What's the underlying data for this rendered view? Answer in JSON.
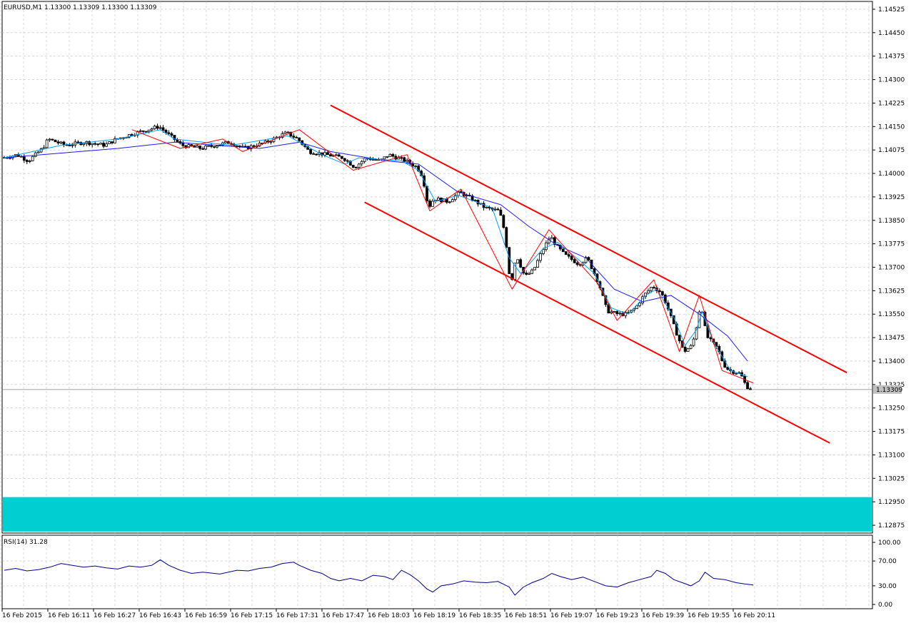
{
  "window": {
    "symbol_header": "EURUSD,M1  1.13300 1.13309 1.13300 1.13309"
  },
  "colors": {
    "background": "#ffffff",
    "grid": "#c0c0c0",
    "candle_bull": "#1a1a3a",
    "candle_bear": "#000000",
    "ma_slow": "#1a1aff",
    "ma_fast": "#00a0ff",
    "zigzag": "#ff0000",
    "channel": "#ff0000",
    "zone": "#00ced1",
    "rsi": "#00008b",
    "price_line": "#808080"
  },
  "chart_data": {
    "type": "candlestick",
    "symbol": "EURUSD",
    "timeframe": "M1",
    "price_axis": {
      "min": 1.1285,
      "max": 1.1455,
      "ticks": [
        "1.14525",
        "1.14450",
        "1.14375",
        "1.14300",
        "1.14225",
        "1.14150",
        "1.14075",
        "1.14000",
        "1.13925",
        "1.13850",
        "1.13775",
        "1.13700",
        "1.13625",
        "1.13550",
        "1.13475",
        "1.13400",
        "1.13325",
        "1.13250",
        "1.13175",
        "1.13100",
        "1.13025",
        "1.12950",
        "1.12875"
      ],
      "tick_values": [
        1.14525,
        1.1445,
        1.14375,
        1.143,
        1.14225,
        1.1415,
        1.14075,
        1.14,
        1.13925,
        1.1385,
        1.13775,
        1.137,
        1.13625,
        1.1355,
        1.13475,
        1.134,
        1.13325,
        1.1325,
        1.13175,
        1.131,
        1.13025,
        1.1295,
        1.12875
      ],
      "current_price_label": "1.13309",
      "current_price": 1.13309
    },
    "time_axis": {
      "labels": [
        "16 Feb 2015",
        "16 Feb 16:11",
        "16 Feb 16:27",
        "16 Feb 16:43",
        "16 Feb 16:59",
        "16 Feb 17:15",
        "16 Feb 17:31",
        "16 Feb 17:47",
        "16 Feb 18:03",
        "16 Feb 18:19",
        "16 Feb 18:35",
        "16 Feb 18:51",
        "16 Feb 19:07",
        "16 Feb 19:23",
        "16 Feb 19:39",
        "16 Feb 19:55",
        "16 Feb 20:11"
      ],
      "bar_count": 264
    },
    "close_path": [
      [
        0,
        1.1405
      ],
      [
        5,
        1.1406
      ],
      [
        9,
        1.1404
      ],
      [
        14,
        1.1408
      ],
      [
        16,
        1.1411
      ],
      [
        22,
        1.1409
      ],
      [
        29,
        1.141
      ],
      [
        36,
        1.1409
      ],
      [
        40,
        1.1411
      ],
      [
        47,
        1.1413
      ],
      [
        55,
        1.1415
      ],
      [
        59,
        1.1412
      ],
      [
        63,
        1.1409
      ],
      [
        70,
        1.1408
      ],
      [
        80,
        1.141
      ],
      [
        85,
        1.1408
      ],
      [
        93,
        1.141
      ],
      [
        100,
        1.1413
      ],
      [
        104,
        1.1411
      ],
      [
        108,
        1.1407
      ],
      [
        114,
        1.1406
      ],
      [
        120,
        1.1405
      ],
      [
        124,
        1.1402
      ],
      [
        128,
        1.1405
      ],
      [
        133,
        1.1404
      ],
      [
        136,
        1.1406
      ],
      [
        142,
        1.1404
      ],
      [
        146,
        1.1402
      ],
      [
        148,
        1.1399
      ],
      [
        150,
        1.1389
      ],
      [
        152,
        1.1392
      ],
      [
        157,
        1.1391
      ],
      [
        161,
        1.1394
      ],
      [
        165,
        1.1392
      ],
      [
        170,
        1.1389
      ],
      [
        175,
        1.1388
      ],
      [
        177,
        1.1381
      ],
      [
        179,
        1.1364
      ],
      [
        181,
        1.1374
      ],
      [
        184,
        1.1367
      ],
      [
        187,
        1.1369
      ],
      [
        190,
        1.1375
      ],
      [
        193,
        1.138
      ],
      [
        195,
        1.1377
      ],
      [
        198,
        1.1374
      ],
      [
        203,
        1.1371
      ],
      [
        206,
        1.1373
      ],
      [
        210,
        1.1365
      ],
      [
        213,
        1.1356
      ],
      [
        217,
        1.1355
      ],
      [
        220,
        1.1355
      ],
      [
        223,
        1.1357
      ],
      [
        226,
        1.1361
      ],
      [
        229,
        1.1364
      ],
      [
        232,
        1.1362
      ],
      [
        234,
        1.1358
      ],
      [
        237,
        1.135
      ],
      [
        240,
        1.1343
      ],
      [
        243,
        1.1345
      ],
      [
        245,
        1.1353
      ],
      [
        246,
        1.1359
      ],
      [
        248,
        1.1348
      ],
      [
        252,
        1.1344
      ],
      [
        254,
        1.1339
      ],
      [
        256,
        1.1337
      ],
      [
        260,
        1.1336
      ],
      [
        262,
        1.1332
      ],
      [
        264,
        1.13309
      ]
    ],
    "moving_average_slow": [
      [
        0,
        1.1405
      ],
      [
        40,
        1.1408
      ],
      [
        60,
        1.141
      ],
      [
        90,
        1.1408
      ],
      [
        104,
        1.141
      ],
      [
        115,
        1.1407
      ],
      [
        135,
        1.1404
      ],
      [
        146,
        1.1403
      ],
      [
        160,
        1.1394
      ],
      [
        175,
        1.139
      ],
      [
        185,
        1.1383
      ],
      [
        195,
        1.1377
      ],
      [
        205,
        1.1373
      ],
      [
        215,
        1.1363
      ],
      [
        225,
        1.1359
      ],
      [
        235,
        1.1361
      ],
      [
        245,
        1.1355
      ],
      [
        255,
        1.1348
      ],
      [
        262,
        1.134
      ]
    ],
    "moving_average_fast": [
      [
        0,
        1.1405
      ],
      [
        20,
        1.1409
      ],
      [
        40,
        1.1411
      ],
      [
        55,
        1.1414
      ],
      [
        60,
        1.1411
      ],
      [
        80,
        1.1409
      ],
      [
        100,
        1.1412
      ],
      [
        112,
        1.1406
      ],
      [
        120,
        1.1403
      ],
      [
        125,
        1.1405
      ],
      [
        140,
        1.1404
      ],
      [
        146,
        1.1401
      ],
      [
        152,
        1.1391
      ],
      [
        160,
        1.1393
      ],
      [
        172,
        1.1389
      ],
      [
        178,
        1.1373
      ],
      [
        182,
        1.1368
      ],
      [
        190,
        1.1376
      ],
      [
        195,
        1.1378
      ],
      [
        203,
        1.1372
      ],
      [
        208,
        1.1368
      ],
      [
        214,
        1.1357
      ],
      [
        220,
        1.1355
      ],
      [
        226,
        1.1361
      ],
      [
        230,
        1.1363
      ],
      [
        236,
        1.1354
      ],
      [
        240,
        1.1345
      ],
      [
        244,
        1.135
      ],
      [
        246,
        1.1356
      ],
      [
        250,
        1.1346
      ],
      [
        256,
        1.1337
      ],
      [
        262,
        1.1335
      ]
    ],
    "zigzag": [
      [
        45,
        1.1414
      ],
      [
        62,
        1.1408
      ],
      [
        77,
        1.1411
      ],
      [
        84,
        1.1407
      ],
      [
        104,
        1.1414
      ],
      [
        123,
        1.1401
      ],
      [
        142,
        1.1406
      ],
      [
        150,
        1.1388
      ],
      [
        161,
        1.1395
      ],
      [
        179,
        1.1363
      ],
      [
        192,
        1.1382
      ],
      [
        209,
        1.1365
      ],
      [
        216,
        1.1353
      ],
      [
        229,
        1.1366
      ],
      [
        238,
        1.1343
      ],
      [
        245,
        1.1361
      ],
      [
        253,
        1.1337
      ],
      [
        264,
        1.1333
      ]
    ],
    "channel": {
      "upper": [
        [
          115,
          1.14218
        ],
        [
          297,
          1.13363
        ]
      ],
      "lower": [
        [
          127,
          1.13908
        ],
        [
          291,
          1.13138
        ]
      ]
    },
    "zone": {
      "top": 1.12965,
      "bottom": 1.12855
    },
    "rsi": {
      "label": "RSI(14) 31.28",
      "value": 31.28,
      "ticks": [
        "100.00",
        "70.00",
        "30.00",
        "0.00"
      ],
      "tick_values": [
        100,
        70,
        30,
        0
      ],
      "series": [
        [
          0,
          55
        ],
        [
          4,
          58
        ],
        [
          8,
          54
        ],
        [
          12,
          56
        ],
        [
          16,
          60
        ],
        [
          20,
          66
        ],
        [
          24,
          63
        ],
        [
          28,
          60
        ],
        [
          32,
          62
        ],
        [
          36,
          59
        ],
        [
          40,
          57
        ],
        [
          44,
          62
        ],
        [
          48,
          60
        ],
        [
          52,
          63
        ],
        [
          55,
          72
        ],
        [
          58,
          63
        ],
        [
          62,
          55
        ],
        [
          66,
          50
        ],
        [
          70,
          52
        ],
        [
          76,
          49
        ],
        [
          82,
          55
        ],
        [
          86,
          54
        ],
        [
          90,
          58
        ],
        [
          94,
          60
        ],
        [
          98,
          66
        ],
        [
          102,
          68
        ],
        [
          104,
          63
        ],
        [
          108,
          55
        ],
        [
          112,
          50
        ],
        [
          115,
          42
        ],
        [
          118,
          38
        ],
        [
          122,
          42
        ],
        [
          126,
          38
        ],
        [
          130,
          47
        ],
        [
          134,
          45
        ],
        [
          137,
          40
        ],
        [
          140,
          55
        ],
        [
          143,
          48
        ],
        [
          146,
          38
        ],
        [
          149,
          25
        ],
        [
          151,
          20
        ],
        [
          154,
          30
        ],
        [
          158,
          33
        ],
        [
          162,
          38
        ],
        [
          166,
          36
        ],
        [
          170,
          35
        ],
        [
          174,
          37
        ],
        [
          178,
          28
        ],
        [
          180,
          15
        ],
        [
          183,
          28
        ],
        [
          186,
          35
        ],
        [
          190,
          42
        ],
        [
          193,
          50
        ],
        [
          196,
          45
        ],
        [
          200,
          40
        ],
        [
          204,
          44
        ],
        [
          208,
          37
        ],
        [
          212,
          30
        ],
        [
          216,
          28
        ],
        [
          220,
          35
        ],
        [
          224,
          40
        ],
        [
          228,
          45
        ],
        [
          230,
          55
        ],
        [
          233,
          50
        ],
        [
          236,
          40
        ],
        [
          239,
          35
        ],
        [
          242,
          30
        ],
        [
          245,
          38
        ],
        [
          247,
          52
        ],
        [
          250,
          42
        ],
        [
          254,
          40
        ],
        [
          258,
          35
        ],
        [
          261,
          33
        ],
        [
          264,
          31.28
        ]
      ]
    }
  }
}
